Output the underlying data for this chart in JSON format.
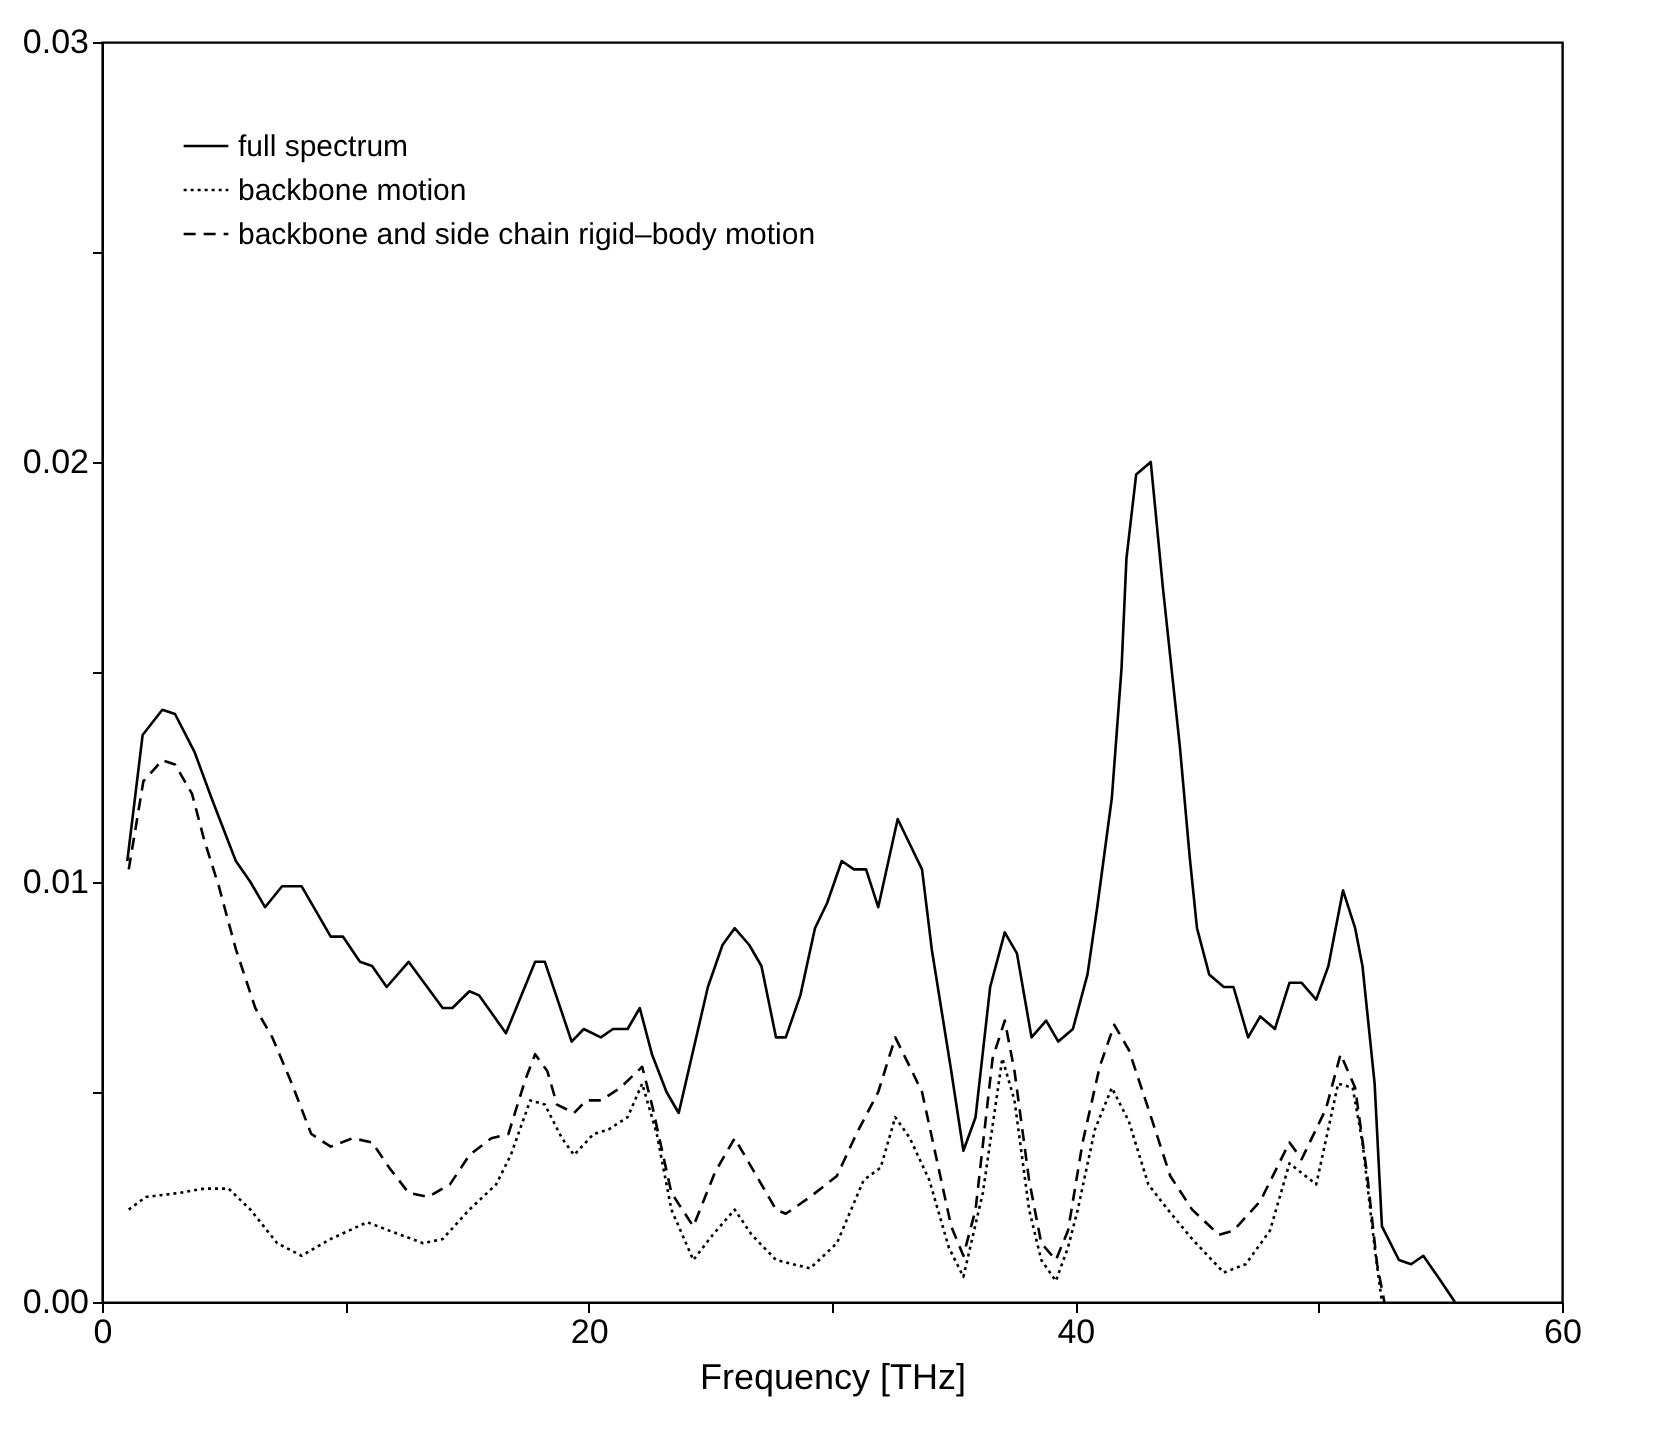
{
  "chart_data": {
    "type": "line",
    "xlabel": "Frequency [THz]",
    "xlim": [
      0,
      60
    ],
    "ylim": [
      0,
      0.03
    ],
    "xticks": [
      0,
      {
        "value": 10,
        "label": null
      },
      20,
      {
        "value": 30,
        "label": null
      },
      40,
      {
        "value": 50,
        "label": null
      },
      60
    ],
    "yticks": [
      {
        "value": 0,
        "label": "0.00"
      },
      {
        "value": 0.005,
        "label": null
      },
      {
        "value": 0.01,
        "label": "0.01"
      },
      {
        "value": 0.015,
        "label": null
      },
      {
        "value": 0.02,
        "label": "0.02"
      },
      {
        "value": 0.025,
        "label": null
      },
      {
        "value": 0.03,
        "label": "0.03"
      }
    ],
    "legend": "top left",
    "grid": false,
    "series": [
      {
        "name": "full spectrum",
        "color": "#000000",
        "line_style": "solid",
        "x": [
          1.04,
          1.67,
          2.48,
          3.0,
          3.8,
          4.5,
          4.9,
          5.5,
          6.1,
          6.7,
          7.4,
          8.2,
          9.4,
          9.9,
          10.6,
          11.1,
          11.7,
          12.6,
          14.0,
          14.4,
          15.1,
          15.5,
          16.6,
          17.8,
          18.2,
          19.3,
          19.8,
          20.5,
          21.0,
          21.6,
          22.1,
          22.6,
          23.2,
          23.7,
          24.9,
          25.5,
          26.0,
          26.6,
          27.1,
          27.7,
          28.1,
          28.7,
          29.3,
          29.8,
          30.4,
          30.9,
          31.4,
          31.9,
          32.7,
          33.2,
          33.7,
          34.1,
          34.9,
          35.4,
          35.9,
          36.5,
          37.1,
          37.6,
          38.2,
          38.8,
          39.3,
          39.9,
          40.5,
          40.9,
          41.5,
          41.9,
          42.1,
          42.5,
          43.1,
          43.6,
          44.3,
          44.7,
          45.0,
          45.5,
          46.1,
          46.5,
          47.1,
          47.6,
          48.2,
          48.8,
          49.3,
          49.9,
          50.4,
          51.0,
          51.5,
          51.8,
          52.3,
          52.6,
          53.3,
          53.8,
          54.3,
          54.9,
          55.6
        ],
        "values": [
          0.0105,
          0.0135,
          0.0141,
          0.014,
          0.0131,
          0.012,
          0.0114,
          0.0105,
          0.01,
          0.0094,
          0.0099,
          0.0099,
          0.0087,
          0.0087,
          0.0081,
          0.008,
          0.0075,
          0.0081,
          0.007,
          0.007,
          0.0074,
          0.0073,
          0.0064,
          0.0081,
          0.0081,
          0.0062,
          0.0065,
          0.0063,
          0.0065,
          0.0065,
          0.007,
          0.0059,
          0.005,
          0.0045,
          0.0075,
          0.0085,
          0.0089,
          0.0085,
          0.008,
          0.0063,
          0.0063,
          0.0073,
          0.0089,
          0.0095,
          0.0105,
          0.0103,
          0.0103,
          0.0094,
          0.0115,
          0.0109,
          0.0103,
          0.0084,
          0.0055,
          0.0036,
          0.0044,
          0.0075,
          0.0088,
          0.0083,
          0.0063,
          0.0067,
          0.0062,
          0.0065,
          0.0078,
          0.0094,
          0.012,
          0.0151,
          0.0177,
          0.0197,
          0.02,
          0.017,
          0.0132,
          0.0106,
          0.0089,
          0.0078,
          0.0075,
          0.0075,
          0.0063,
          0.0068,
          0.0065,
          0.0076,
          0.0076,
          0.0072,
          0.008,
          0.0098,
          0.0089,
          0.008,
          0.0052,
          0.0018,
          0.001,
          0.0009,
          0.0011,
          0.0006,
          0
        ]
      },
      {
        "name": "backbone motion",
        "color": "#000000",
        "line_style": "dotted",
        "x": [
          1.1,
          1.8,
          3.2,
          4.2,
          5.2,
          6.1,
          7.2,
          8.2,
          9.4,
          10.9,
          11.8,
          13.2,
          14.0,
          15.1,
          16.2,
          16.8,
          17.6,
          18.2,
          18.9,
          19.4,
          20.2,
          20.8,
          21.6,
          22.2,
          22.8,
          23.4,
          24.3,
          25.1,
          26.0,
          26.7,
          27.7,
          29.1,
          30.2,
          31.3,
          32.0,
          32.6,
          33.2,
          34.0,
          34.8,
          35.4,
          36.2,
          37.0,
          37.5,
          38.1,
          38.6,
          39.2,
          39.7,
          40.1,
          40.8,
          41.5,
          42.2,
          43.0,
          43.8,
          44.8,
          46.1,
          47.0,
          48.0,
          48.8,
          49.9,
          50.8,
          51.4,
          51.8,
          52.3,
          52.6
        ],
        "values": [
          0.0022,
          0.0025,
          0.0026,
          0.0027,
          0.0027,
          0.0022,
          0.0014,
          0.0011,
          0.0015,
          0.0019,
          0.0017,
          0.0014,
          0.0015,
          0.0022,
          0.0028,
          0.0035,
          0.0048,
          0.0047,
          0.0039,
          0.0035,
          0.004,
          0.0041,
          0.0044,
          0.0052,
          0.004,
          0.0022,
          0.001,
          0.0016,
          0.0022,
          0.0016,
          0.001,
          0.0008,
          0.0014,
          0.0029,
          0.0032,
          0.0044,
          0.0039,
          0.0029,
          0.0013,
          0.0006,
          0.0026,
          0.0058,
          0.0048,
          0.0022,
          0.001,
          0.0005,
          0.0013,
          0.0022,
          0.0041,
          0.0051,
          0.0043,
          0.0028,
          0.0022,
          0.0015,
          0.0007,
          0.0009,
          0.0017,
          0.0033,
          0.0028,
          0.0052,
          0.0051,
          0.0038,
          0.0013,
          0
        ]
      },
      {
        "name": "backbone and side chain rigid–body motion",
        "color": "#000000",
        "line_style": "dashed",
        "x": [
          1.1,
          1.7,
          2.48,
          3.0,
          3.7,
          4.2,
          4.8,
          5.5,
          6.3,
          7.0,
          7.8,
          8.6,
          9.4,
          10.3,
          11.1,
          11.8,
          12.6,
          13.4,
          14.3,
          15.1,
          16.0,
          16.7,
          17.4,
          17.8,
          18.3,
          18.7,
          19.4,
          19.9,
          20.5,
          21.3,
          22.2,
          22.6,
          23.4,
          24.3,
          25.2,
          26.0,
          26.7,
          27.7,
          28.1,
          29.1,
          30.2,
          31.0,
          31.9,
          32.6,
          33.2,
          33.7,
          34.3,
          34.9,
          35.4,
          35.9,
          36.6,
          37.1,
          37.5,
          38.1,
          38.6,
          39.2,
          39.7,
          40.3,
          41.0,
          41.6,
          42.2,
          43.0,
          43.9,
          44.8,
          45.9,
          46.5,
          47.6,
          48.8,
          49.3,
          50.3,
          50.9,
          51.5,
          52.0,
          52.4,
          52.7
        ],
        "values": [
          0.0103,
          0.0124,
          0.0129,
          0.0128,
          0.0121,
          0.011,
          0.0099,
          0.0084,
          0.007,
          0.0063,
          0.0052,
          0.004,
          0.0037,
          0.0039,
          0.0038,
          0.0032,
          0.0026,
          0.0025,
          0.0028,
          0.0035,
          0.0039,
          0.004,
          0.0053,
          0.0059,
          0.0055,
          0.0047,
          0.0045,
          0.0048,
          0.0048,
          0.0051,
          0.0056,
          0.0047,
          0.0026,
          0.0018,
          0.0031,
          0.0039,
          0.0032,
          0.0022,
          0.0021,
          0.0025,
          0.003,
          0.004,
          0.005,
          0.0063,
          0.0056,
          0.005,
          0.0034,
          0.0018,
          0.0011,
          0.0022,
          0.0058,
          0.0067,
          0.0055,
          0.0029,
          0.0014,
          0.001,
          0.0017,
          0.0038,
          0.0056,
          0.0066,
          0.006,
          0.0046,
          0.003,
          0.0022,
          0.0016,
          0.0017,
          0.0024,
          0.0038,
          0.0034,
          0.0046,
          0.0059,
          0.0051,
          0.003,
          0.0009,
          0
        ]
      }
    ]
  }
}
